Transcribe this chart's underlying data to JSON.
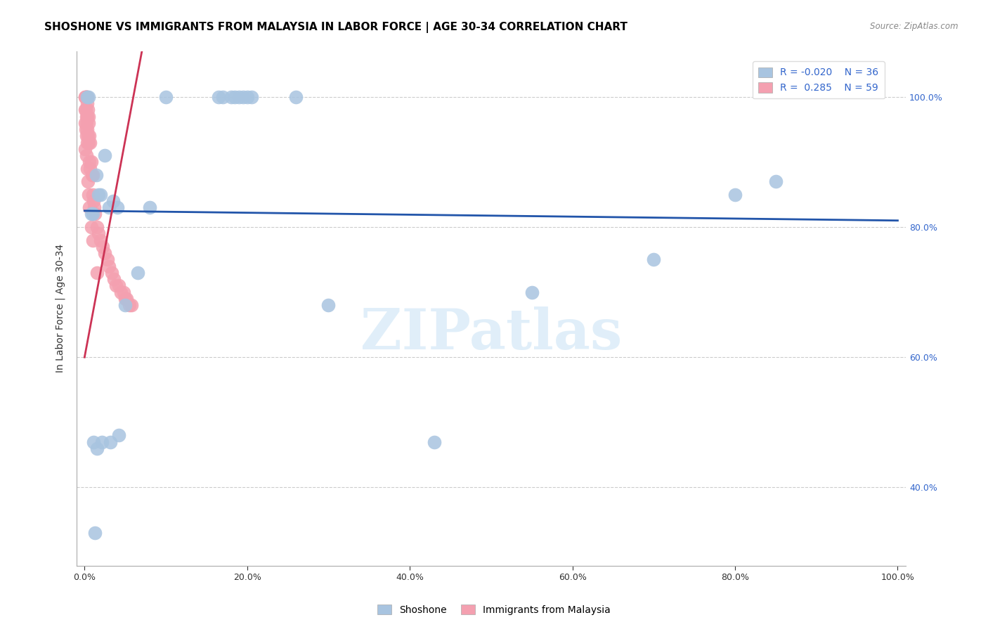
{
  "title": "SHOSHONE VS IMMIGRANTS FROM MALAYSIA IN LABOR FORCE | AGE 30-34 CORRELATION CHART",
  "source": "Source: ZipAtlas.com",
  "ylabel": "In Labor Force | Age 30-34",
  "legend_label1": "Shoshone",
  "legend_label2": "Immigrants from Malaysia",
  "r1": -0.02,
  "n1": 36,
  "r2": 0.285,
  "n2": 59,
  "color1": "#a8c4e0",
  "color2": "#f4a0b0",
  "trendline1_color": "#2255aa",
  "trendline2_color": "#cc3355",
  "background_color": "#ffffff",
  "watermark": "ZIPatlas",
  "blue_x": [
    0.3,
    0.5,
    0.8,
    1.0,
    1.4,
    1.7,
    2.0,
    2.5,
    3.0,
    3.5,
    4.0,
    5.0,
    6.5,
    8.0,
    10.0,
    16.5,
    17.0,
    18.0,
    18.5,
    19.0,
    19.5,
    20.0,
    20.5,
    26.0,
    30.0,
    43.0,
    55.0,
    70.0,
    80.0,
    85.0,
    1.1,
    1.5,
    2.1,
    3.2,
    4.2,
    1.3
  ],
  "blue_y": [
    100.0,
    100.0,
    82.0,
    82.0,
    88.0,
    85.0,
    85.0,
    91.0,
    83.0,
    84.0,
    83.0,
    68.0,
    73.0,
    83.0,
    100.0,
    100.0,
    100.0,
    100.0,
    100.0,
    100.0,
    100.0,
    100.0,
    100.0,
    100.0,
    68.0,
    47.0,
    70.0,
    75.0,
    85.0,
    87.0,
    47.0,
    46.0,
    47.0,
    47.0,
    48.0,
    33.0
  ],
  "pink_x": [
    0.1,
    0.1,
    0.1,
    0.1,
    0.15,
    0.15,
    0.15,
    0.2,
    0.2,
    0.2,
    0.25,
    0.25,
    0.3,
    0.3,
    0.3,
    0.35,
    0.35,
    0.4,
    0.4,
    0.45,
    0.5,
    0.5,
    0.6,
    0.6,
    0.7,
    0.7,
    0.8,
    0.9,
    1.0,
    1.0,
    1.1,
    1.2,
    1.3,
    1.5,
    1.7,
    2.0,
    2.2,
    2.5,
    2.8,
    3.0,
    3.3,
    3.6,
    3.9,
    4.2,
    4.5,
    4.8,
    5.0,
    5.2,
    5.5,
    5.8,
    0.1,
    0.2,
    0.3,
    0.4,
    0.5,
    0.6,
    0.8,
    1.0,
    1.5
  ],
  "pink_y": [
    100.0,
    100.0,
    98.0,
    96.0,
    100.0,
    98.0,
    95.0,
    100.0,
    97.0,
    94.0,
    100.0,
    96.0,
    100.0,
    97.0,
    93.0,
    99.0,
    95.0,
    98.0,
    94.0,
    96.0,
    97.0,
    93.0,
    94.0,
    90.0,
    93.0,
    89.0,
    90.0,
    88.0,
    88.0,
    85.0,
    84.0,
    83.0,
    82.0,
    80.0,
    79.0,
    78.0,
    77.0,
    76.0,
    75.0,
    74.0,
    73.0,
    72.0,
    71.0,
    71.0,
    70.0,
    70.0,
    69.0,
    69.0,
    68.0,
    68.0,
    92.0,
    91.0,
    89.0,
    87.0,
    85.0,
    83.0,
    80.0,
    78.0,
    73.0
  ],
  "blue_trendline_y0": 82.5,
  "blue_trendline_y1": 81.0,
  "pink_trendline_x0": 0.0,
  "pink_trendline_y0": 60.0,
  "pink_trendline_x1": 6.0,
  "pink_trendline_y1": 100.0,
  "xlim": [
    -1,
    101
  ],
  "ylim": [
    28,
    107
  ],
  "xticks": [
    0,
    20,
    40,
    60,
    80,
    100
  ],
  "yticks": [
    40,
    60,
    80,
    100
  ]
}
